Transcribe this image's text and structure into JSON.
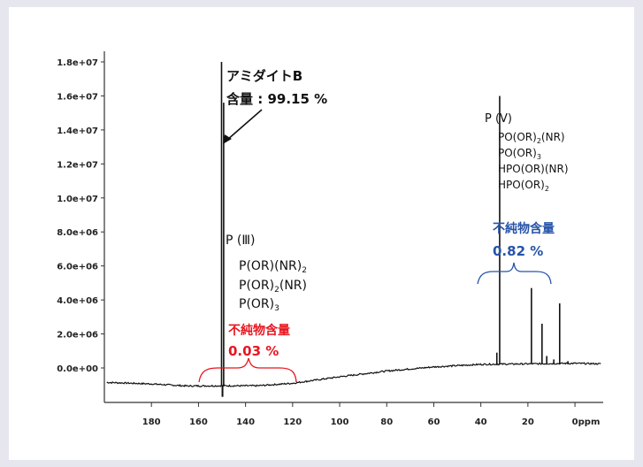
{
  "chart_data": {
    "type": "line",
    "title": "",
    "xlabel": "ppm",
    "ylabel": "",
    "xlim": [
      200,
      -12
    ],
    "ylim": [
      -1000000,
      18500000
    ],
    "x_reversed": true,
    "x_ticks": [
      180,
      160,
      140,
      120,
      100,
      80,
      60,
      40,
      20,
      0
    ],
    "x_tick_labels": [
      "180",
      "160",
      "140",
      "120",
      "100",
      "80",
      "60",
      "40",
      "20",
      "0"
    ],
    "y_ticks": [
      0,
      2000000,
      4000000,
      6000000,
      8000000,
      10000000,
      12000000,
      14000000,
      16000000,
      18000000
    ],
    "y_tick_labels": [
      "0.0e+00",
      "2.0e+06",
      "4.0e+06",
      "6.0e+06",
      "8.0e+06",
      "1.0e+07",
      "1.2e+07",
      "1.4e+07",
      "1.6e+07",
      "1.8e+07"
    ],
    "grid": false,
    "line_color": "#111111",
    "baseline": [
      {
        "x": 199,
        "y": -850000
      },
      {
        "x": 180,
        "y": -940000
      },
      {
        "x": 165,
        "y": -1060000
      },
      {
        "x": 150,
        "y": -1050000
      },
      {
        "x": 135,
        "y": -1050000
      },
      {
        "x": 120,
        "y": -900000
      },
      {
        "x": 100,
        "y": -520000
      },
      {
        "x": 80,
        "y": -180000
      },
      {
        "x": 60,
        "y": 60000
      },
      {
        "x": 40,
        "y": 210000
      },
      {
        "x": 20,
        "y": 240000
      },
      {
        "x": 0,
        "y": 270000
      },
      {
        "x": -11,
        "y": 240000
      }
    ],
    "peaks": [
      {
        "x": 150.2,
        "y": 18000000
      },
      {
        "x": 149.3,
        "y": 15600000
      },
      {
        "x": 32,
        "y": 16000000
      },
      {
        "x": 18.5,
        "y": 4700000
      },
      {
        "x": 14,
        "y": 2600000
      },
      {
        "x": 6.5,
        "y": 3800000
      },
      {
        "x": 12,
        "y": 700000
      },
      {
        "x": 9,
        "y": 500000
      },
      {
        "x": 3,
        "y": 400000
      },
      {
        "x": 33.2,
        "y": 900000
      }
    ],
    "annotations": {
      "amidite_name": "アミダイトB",
      "content": "含量 : 99.15 %",
      "p3_heading": "P (Ⅲ)",
      "p3_species": [
        "P(OR)(NR)",
        "P(OR)",
        "P(OR)"
      ],
      "p3_subscripts": [
        "2",
        "2",
        "3"
      ],
      "p3_suffix": [
        "",
        "(NR)",
        ""
      ],
      "p3_impurity_label": "不純物含量",
      "p3_impurity_value": "0.03 %",
      "p5_heading": "P (V)",
      "p5_species": [
        "PO(OR)",
        "PO(OR)",
        "HPO(OR)(NR)",
        "HPO(OR)"
      ],
      "p5_subscripts": [
        "2",
        "3",
        "",
        "2"
      ],
      "p5_suffix": [
        "(NR)",
        "",
        "",
        ""
      ],
      "p5_impurity_label": "不純物含量",
      "p5_impurity_value": "0.82 %"
    },
    "colors": {
      "red": "#e8151f",
      "blue": "#2653a8"
    }
  }
}
